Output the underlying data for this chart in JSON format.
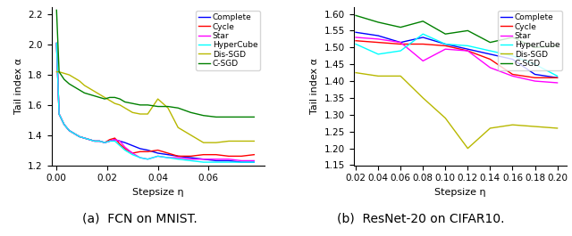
{
  "plot_a": {
    "title": "(a)  FCN on MNIST.",
    "xlabel": "Stepsize η",
    "ylabel": "Tail index α",
    "ylim": [
      1.2,
      2.25
    ],
    "xlim": [
      -0.002,
      0.082
    ],
    "xticks": [
      0.0,
      0.02,
      0.04,
      0.06
    ],
    "yticks": [
      1.2,
      1.4,
      1.6,
      1.8,
      2.0,
      2.2
    ],
    "series": {
      "Complete": {
        "color": "blue",
        "x": [
          0.0,
          0.001,
          0.003,
          0.005,
          0.007,
          0.009,
          0.011,
          0.013,
          0.015,
          0.017,
          0.019,
          0.021,
          0.023,
          0.025,
          0.027,
          0.03,
          0.033,
          0.036,
          0.04,
          0.044,
          0.048,
          0.053,
          0.058,
          0.063,
          0.068,
          0.073,
          0.078
        ],
        "y": [
          2.01,
          1.54,
          1.47,
          1.43,
          1.41,
          1.39,
          1.38,
          1.37,
          1.36,
          1.36,
          1.35,
          1.36,
          1.37,
          1.36,
          1.35,
          1.33,
          1.31,
          1.3,
          1.28,
          1.27,
          1.26,
          1.25,
          1.24,
          1.23,
          1.23,
          1.22,
          1.22
        ]
      },
      "Cycle": {
        "color": "red",
        "x": [
          0.0,
          0.001,
          0.003,
          0.005,
          0.007,
          0.009,
          0.011,
          0.013,
          0.015,
          0.017,
          0.019,
          0.021,
          0.023,
          0.025,
          0.027,
          0.03,
          0.033,
          0.036,
          0.04,
          0.044,
          0.048,
          0.053,
          0.058,
          0.063,
          0.068,
          0.073,
          0.078
        ],
        "y": [
          2.01,
          1.54,
          1.47,
          1.43,
          1.41,
          1.39,
          1.38,
          1.37,
          1.36,
          1.36,
          1.35,
          1.37,
          1.38,
          1.34,
          1.31,
          1.28,
          1.29,
          1.29,
          1.3,
          1.28,
          1.26,
          1.26,
          1.27,
          1.27,
          1.26,
          1.26,
          1.27
        ]
      },
      "Star": {
        "color": "magenta",
        "x": [
          0.0,
          0.001,
          0.003,
          0.005,
          0.007,
          0.009,
          0.011,
          0.013,
          0.015,
          0.017,
          0.019,
          0.021,
          0.023,
          0.025,
          0.027,
          0.03,
          0.033,
          0.036,
          0.04,
          0.044,
          0.048,
          0.053,
          0.058,
          0.063,
          0.068,
          0.073,
          0.078
        ],
        "y": [
          2.01,
          1.54,
          1.47,
          1.43,
          1.41,
          1.39,
          1.38,
          1.37,
          1.36,
          1.36,
          1.35,
          1.36,
          1.37,
          1.36,
          1.32,
          1.28,
          1.25,
          1.24,
          1.26,
          1.25,
          1.25,
          1.24,
          1.24,
          1.24,
          1.24,
          1.23,
          1.23
        ]
      },
      "HyperCube": {
        "color": "cyan",
        "x": [
          0.0,
          0.001,
          0.003,
          0.005,
          0.007,
          0.009,
          0.011,
          0.013,
          0.015,
          0.017,
          0.019,
          0.021,
          0.023,
          0.025,
          0.027,
          0.03,
          0.033,
          0.036,
          0.04,
          0.044,
          0.048,
          0.053,
          0.058,
          0.063,
          0.068,
          0.073,
          0.078
        ],
        "y": [
          2.01,
          1.54,
          1.47,
          1.43,
          1.41,
          1.39,
          1.38,
          1.37,
          1.36,
          1.36,
          1.35,
          1.36,
          1.36,
          1.33,
          1.3,
          1.27,
          1.25,
          1.24,
          1.26,
          1.25,
          1.24,
          1.23,
          1.22,
          1.22,
          1.22,
          1.22,
          1.22
        ]
      },
      "Dis-SGD": {
        "color": "#b8b800",
        "x": [
          0.0,
          0.001,
          0.003,
          0.005,
          0.007,
          0.009,
          0.011,
          0.013,
          0.015,
          0.017,
          0.019,
          0.021,
          0.023,
          0.025,
          0.027,
          0.03,
          0.033,
          0.036,
          0.04,
          0.044,
          0.048,
          0.053,
          0.058,
          0.063,
          0.068,
          0.073,
          0.078
        ],
        "y": [
          1.82,
          1.82,
          1.81,
          1.8,
          1.78,
          1.76,
          1.73,
          1.71,
          1.69,
          1.67,
          1.65,
          1.63,
          1.61,
          1.6,
          1.58,
          1.55,
          1.54,
          1.54,
          1.64,
          1.58,
          1.45,
          1.4,
          1.35,
          1.35,
          1.36,
          1.36,
          1.36
        ]
      },
      "C-SGD": {
        "color": "green",
        "x": [
          0.0,
          0.001,
          0.003,
          0.005,
          0.007,
          0.009,
          0.011,
          0.013,
          0.015,
          0.017,
          0.019,
          0.021,
          0.023,
          0.025,
          0.027,
          0.03,
          0.033,
          0.036,
          0.04,
          0.044,
          0.048,
          0.053,
          0.058,
          0.063,
          0.068,
          0.073,
          0.078
        ],
        "y": [
          2.23,
          1.82,
          1.77,
          1.74,
          1.72,
          1.7,
          1.68,
          1.67,
          1.66,
          1.65,
          1.64,
          1.65,
          1.65,
          1.64,
          1.62,
          1.61,
          1.6,
          1.6,
          1.59,
          1.59,
          1.58,
          1.55,
          1.53,
          1.52,
          1.52,
          1.52,
          1.52
        ]
      }
    },
    "legend_order": [
      "Complete",
      "Cycle",
      "Star",
      "HyperCube",
      "Dis-SGD",
      "C-SGD"
    ]
  },
  "plot_b": {
    "title": "(b)  ResNet-20 on CIFAR10.",
    "xlabel": "Stepsize η",
    "ylabel": "Tail index α",
    "ylim": [
      1.15,
      1.62
    ],
    "xlim": [
      0.018,
      0.208
    ],
    "xticks": [
      0.02,
      0.04,
      0.06,
      0.08,
      0.1,
      0.12,
      0.14,
      0.16,
      0.18,
      0.2
    ],
    "yticks": [
      1.15,
      1.2,
      1.25,
      1.3,
      1.35,
      1.4,
      1.45,
      1.5,
      1.55,
      1.6
    ],
    "series": {
      "Complete": {
        "color": "blue",
        "x": [
          0.02,
          0.04,
          0.06,
          0.08,
          0.1,
          0.12,
          0.14,
          0.16,
          0.18,
          0.2
        ],
        "y": [
          1.545,
          1.535,
          1.515,
          1.53,
          1.51,
          1.495,
          1.48,
          1.465,
          1.42,
          1.41
        ]
      },
      "Cycle": {
        "color": "red",
        "x": [
          0.02,
          0.04,
          0.06,
          0.08,
          0.1,
          0.12,
          0.14,
          0.16,
          0.18,
          0.2
        ],
        "y": [
          1.52,
          1.515,
          1.51,
          1.51,
          1.505,
          1.49,
          1.465,
          1.42,
          1.41,
          1.41
        ]
      },
      "Star": {
        "color": "magenta",
        "x": [
          0.02,
          0.04,
          0.06,
          0.08,
          0.1,
          0.12,
          0.14,
          0.16,
          0.18,
          0.2
        ],
        "y": [
          1.53,
          1.525,
          1.515,
          1.46,
          1.495,
          1.49,
          1.44,
          1.415,
          1.4,
          1.395
        ]
      },
      "HyperCube": {
        "color": "cyan",
        "x": [
          0.02,
          0.04,
          0.06,
          0.08,
          0.1,
          0.12,
          0.14,
          0.16,
          0.18,
          0.2
        ],
        "y": [
          1.51,
          1.48,
          1.49,
          1.54,
          1.51,
          1.505,
          1.49,
          1.475,
          1.45,
          1.415
        ]
      },
      "Dis-SGD": {
        "color": "#b8b800",
        "x": [
          0.02,
          0.04,
          0.06,
          0.08,
          0.1,
          0.12,
          0.14,
          0.16,
          0.18,
          0.2
        ],
        "y": [
          1.425,
          1.415,
          1.415,
          1.35,
          1.29,
          1.2,
          1.26,
          1.27,
          1.265,
          1.26
        ]
      },
      "C-SGD": {
        "color": "green",
        "x": [
          0.02,
          0.04,
          0.06,
          0.08,
          0.1,
          0.12,
          0.14,
          0.16,
          0.18,
          0.2
        ],
        "y": [
          1.595,
          1.575,
          1.56,
          1.578,
          1.54,
          1.55,
          1.515,
          1.53,
          1.5,
          1.505
        ]
      }
    },
    "legend_order": [
      "Complete",
      "Cycle",
      "Star",
      "HyperCube",
      "Dis-SGD",
      "C-SGD"
    ]
  }
}
